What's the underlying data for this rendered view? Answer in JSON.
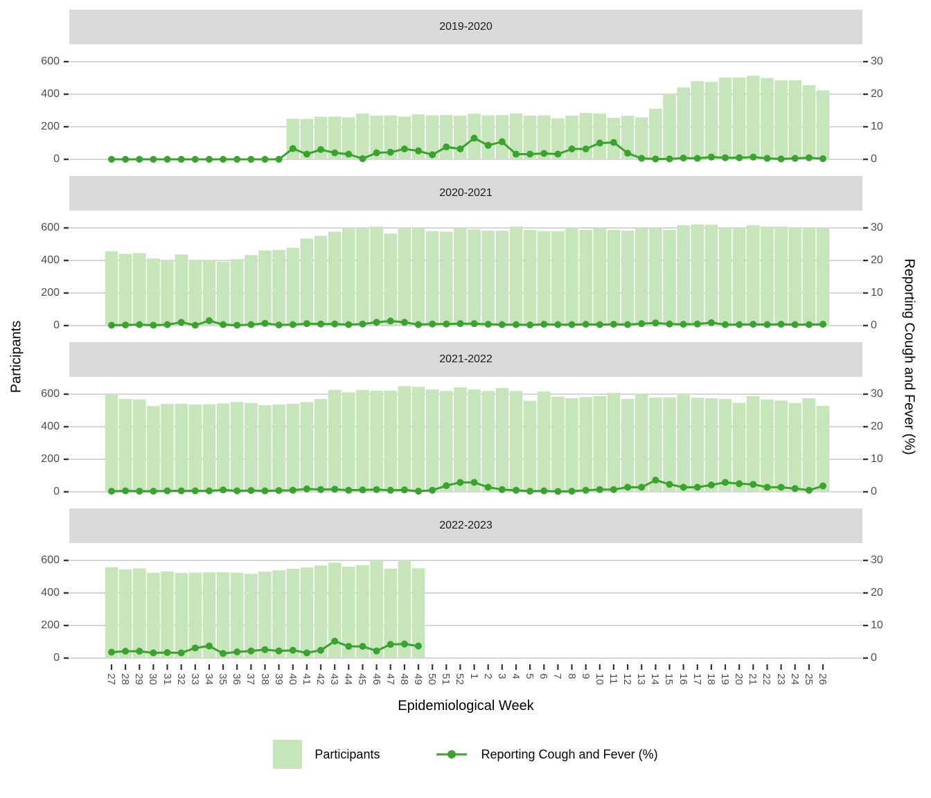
{
  "figure": {
    "x_title": "Epidemiological Week",
    "y_title_left": "Participants",
    "y_title_right": "Reporting Cough and Fever (%)",
    "legend": [
      {
        "type": "bar",
        "label": "Participants"
      },
      {
        "type": "line",
        "label": "Reporting Cough and Fever (%)"
      }
    ]
  },
  "chart_data": {
    "type": "combo-bar-line-faceted",
    "title": "",
    "xlabel": "Epidemiological Week",
    "ylabel_left": "Participants",
    "ylabel_right": "Reporting Cough and Fever (%)",
    "legend_position": "bottom",
    "grid": "horizontal-only",
    "colors": {
      "bar": "#c7e5bb",
      "line": "#3aa22e",
      "strip": "#d9d9d9",
      "grid": "#d6d6d6",
      "axis_text": "#4d4d4d",
      "tick": "#333333"
    },
    "categories": [
      "27",
      "28",
      "29",
      "30",
      "31",
      "32",
      "33",
      "34",
      "35",
      "36",
      "37",
      "38",
      "39",
      "40",
      "41",
      "42",
      "43",
      "44",
      "45",
      "46",
      "47",
      "48",
      "49",
      "50",
      "51",
      "52",
      "1",
      "2",
      "3",
      "4",
      "5",
      "6",
      "7",
      "8",
      "9",
      "10",
      "11",
      "12",
      "13",
      "14",
      "15",
      "16",
      "17",
      "18",
      "19",
      "20",
      "21",
      "22",
      "23",
      "24",
      "25",
      "26"
    ],
    "y_left": {
      "ticks": [
        0,
        200,
        400,
        600
      ],
      "lim": [
        0,
        660
      ]
    },
    "y_right": {
      "ticks": [
        0,
        10,
        20,
        30
      ],
      "lim": [
        0,
        33
      ]
    },
    "panels": [
      {
        "title": "2019-2020",
        "participants": [
          null,
          null,
          null,
          null,
          null,
          null,
          null,
          null,
          null,
          null,
          null,
          null,
          null,
          250,
          248,
          262,
          263,
          258,
          281,
          268,
          270,
          263,
          276,
          270,
          272,
          268,
          280,
          270,
          272,
          282,
          268,
          270,
          252,
          268,
          285,
          281,
          255,
          268,
          258,
          311,
          401,
          442,
          480,
          476,
          502,
          502,
          513,
          500,
          486,
          486,
          455,
          424
        ],
        "pct": [
          0,
          0,
          0,
          0,
          0,
          0,
          0,
          0,
          0,
          0,
          0,
          0,
          0,
          3.3,
          1.6,
          3.0,
          2.0,
          1.6,
          0.2,
          2.0,
          2.2,
          3.2,
          2.6,
          1.4,
          3.8,
          3.2,
          6.5,
          4.3,
          5.4,
          1.6,
          1.6,
          1.8,
          1.6,
          3.2,
          3.2,
          5.0,
          5.2,
          1.9,
          0.3,
          0.1,
          0.1,
          0.4,
          0.3,
          0.7,
          0.5,
          0.5,
          0.7,
          0.3,
          0.1,
          0.3,
          0.5,
          0.2
        ]
      },
      {
        "title": "2020-2021",
        "participants": [
          457,
          441,
          445,
          412,
          398,
          437,
          404,
          400,
          392,
          408,
          433,
          461,
          465,
          478,
          535,
          551,
          576,
          600,
          600,
          608,
          565,
          596,
          600,
          580,
          576,
          600,
          590,
          583,
          583,
          608,
          588,
          580,
          580,
          600,
          588,
          600,
          588,
          583,
          604,
          600,
          588,
          616,
          622,
          620,
          600,
          596,
          616,
          608,
          608,
          600,
          604,
          600
        ],
        "pct": [
          0.1,
          0.2,
          0.3,
          0.1,
          0.3,
          1.0,
          0.1,
          1.5,
          0.3,
          0.1,
          0.3,
          0.7,
          0.2,
          0.3,
          0.6,
          0.5,
          0.5,
          0.3,
          0.5,
          1.0,
          1.4,
          1.0,
          0.3,
          0.5,
          0.5,
          0.6,
          0.6,
          0.4,
          0.3,
          0.3,
          0.2,
          0.4,
          0.3,
          0.3,
          0.4,
          0.3,
          0.4,
          0.3,
          0.6,
          0.8,
          0.5,
          0.4,
          0.5,
          0.9,
          0.3,
          0.3,
          0.4,
          0.3,
          0.4,
          0.3,
          0.3,
          0.4
        ]
      },
      {
        "title": "2021-2022",
        "participants": [
          598,
          571,
          568,
          527,
          540,
          541,
          536,
          538,
          543,
          552,
          546,
          532,
          537,
          541,
          551,
          570,
          626,
          611,
          626,
          621,
          621,
          650,
          645,
          629,
          620,
          642,
          629,
          620,
          638,
          620,
          559,
          616,
          584,
          575,
          582,
          588,
          608,
          571,
          598,
          580,
          580,
          595,
          578,
          575,
          570,
          547,
          588,
          568,
          561,
          545,
          575,
          528
        ],
        "pct": [
          0.2,
          0.3,
          0.2,
          0.2,
          0.3,
          0.3,
          0.3,
          0.3,
          0.6,
          0.3,
          0.4,
          0.3,
          0.4,
          0.5,
          0.9,
          0.7,
          0.8,
          0.5,
          0.6,
          0.7,
          0.5,
          0.6,
          0.2,
          0.5,
          1.9,
          2.9,
          2.9,
          1.4,
          0.7,
          0.5,
          0.2,
          0.3,
          0.1,
          0.2,
          0.5,
          0.7,
          0.7,
          1.4,
          1.4,
          3.6,
          2.3,
          1.4,
          1.4,
          2.1,
          2.9,
          2.5,
          2.3,
          1.4,
          1.4,
          1.0,
          0.5,
          1.8
        ]
      },
      {
        "title": "2022-2023",
        "participants": [
          559,
          545,
          551,
          524,
          532,
          523,
          525,
          527,
          527,
          525,
          518,
          531,
          539,
          549,
          557,
          569,
          586,
          562,
          571,
          603,
          549,
          599,
          552,
          null,
          null,
          null,
          null,
          null,
          null,
          null,
          null,
          null,
          null,
          null,
          null,
          null,
          null,
          null,
          null,
          null,
          null,
          null,
          null,
          null,
          null,
          null,
          null,
          null,
          null,
          null,
          null,
          null
        ],
        "pct": [
          1.8,
          2.1,
          2.1,
          1.6,
          1.7,
          1.6,
          3.1,
          3.7,
          1.4,
          1.9,
          2.2,
          2.6,
          2.2,
          2.4,
          1.6,
          2.4,
          5.2,
          3.6,
          3.6,
          2.2,
          4.2,
          4.3,
          3.7,
          null,
          null,
          null,
          null,
          null,
          null,
          null,
          null,
          null,
          null,
          null,
          null,
          null,
          null,
          null,
          null,
          null,
          null,
          null,
          null,
          null,
          null,
          null,
          null,
          null,
          null,
          null,
          null,
          null
        ]
      }
    ]
  }
}
